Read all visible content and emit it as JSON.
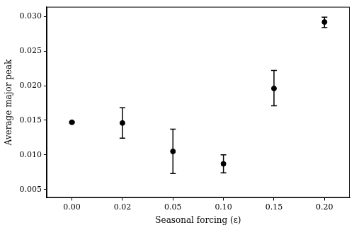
{
  "chart_data": {
    "type": "scatter",
    "x_label": "Seasonal forcing (ε)",
    "y_label": "Average major peak",
    "categories": [
      "0.00",
      "0.02",
      "0.05",
      "0.10",
      "0.15",
      "0.20"
    ],
    "values": [
      0.0147,
      0.0146,
      0.0105,
      0.0087,
      0.0196,
      0.0292
    ],
    "lower": [
      0.0146,
      0.0124,
      0.0073,
      0.0074,
      0.0171,
      0.0284
    ],
    "upper": [
      0.0148,
      0.0168,
      0.0137,
      0.01,
      0.0222,
      0.0299
    ],
    "color": "#000000",
    "marker": "circle",
    "ylim": [
      0.0038,
      0.0314
    ],
    "yticks": [
      0.005,
      {
        "value": 0.01,
        "label": "0.010"
      },
      0.015,
      {
        "value": 0.02,
        "label": "0.020"
      },
      0.025,
      {
        "value": 0.03,
        "label": "0.030"
      }
    ],
    "grid": false
  }
}
